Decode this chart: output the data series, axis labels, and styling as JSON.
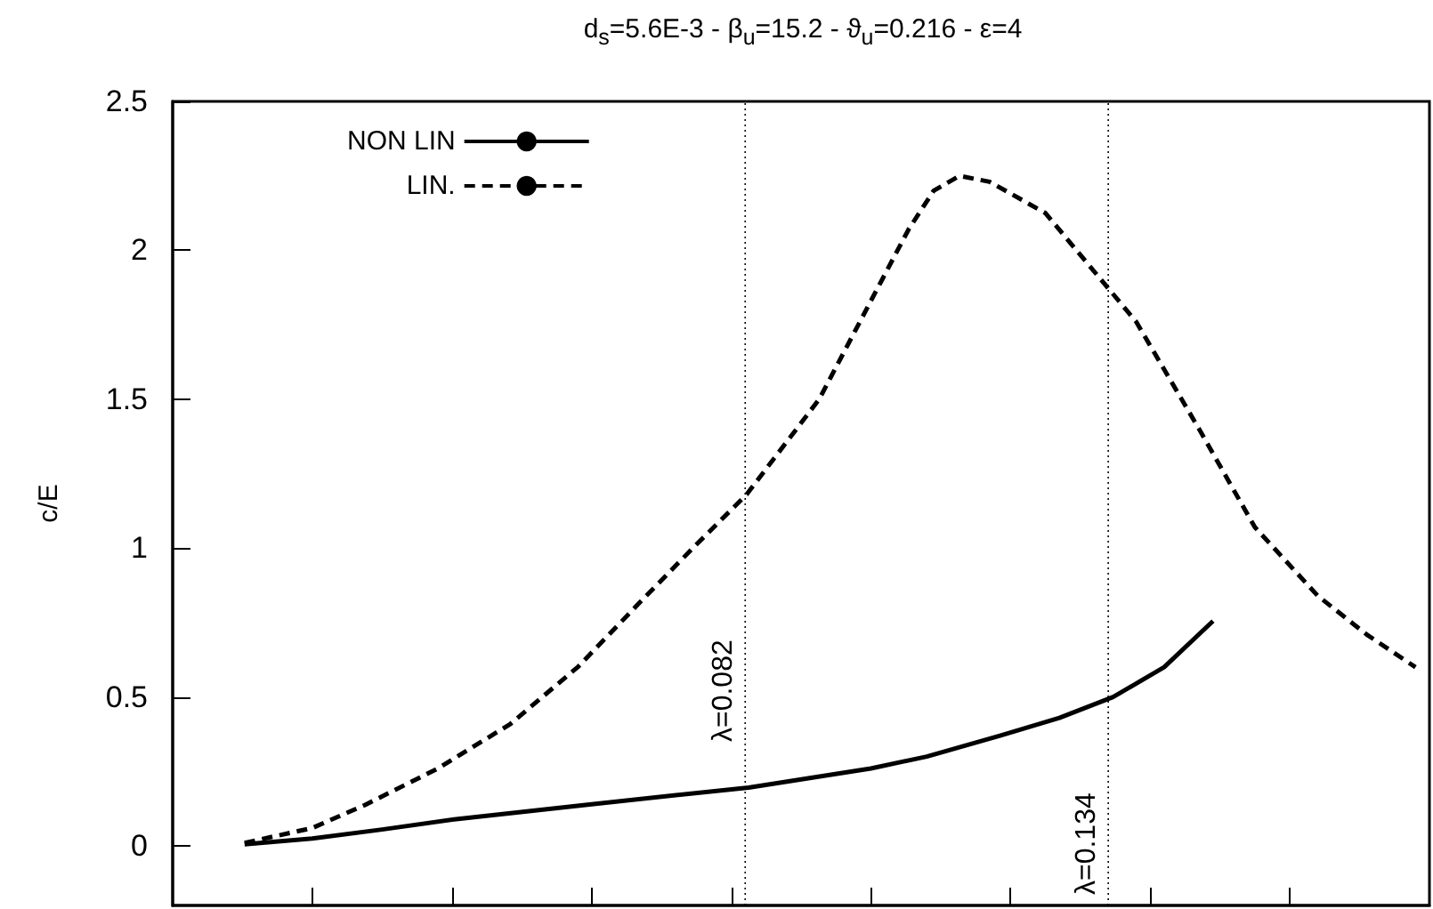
{
  "chart_data": {
    "type": "line",
    "title": "d$_{s}$=5.6E-3 - β$_{u}$=15.2 - ϑ$_{u}$=0.216 - ε=4",
    "ylabel": "c/E",
    "xlim": [
      0,
      0.18
    ],
    "xticks": [
      {
        "value": 0.02,
        "label": null
      },
      {
        "value": 0.04,
        "label": null
      },
      {
        "value": 0.06,
        "label": null
      },
      {
        "value": 0.08,
        "label": null
      },
      {
        "value": 0.1,
        "label": null
      },
      {
        "value": 0.12,
        "label": null
      },
      {
        "value": 0.14,
        "label": null
      },
      {
        "value": 0.16,
        "label": null
      }
    ],
    "ylim": [
      -0.2,
      2.5
    ],
    "yticks": [
      0,
      0.5,
      1,
      1.5,
      2,
      2.5
    ],
    "tick_labels": "y",
    "grid": false,
    "legend": "top left",
    "marker": "none",
    "series": [
      {
        "name": "NON LIN",
        "color": "#000000",
        "line_style": "solid",
        "x": [
          0.0103,
          0.02,
          0.03,
          0.0406,
          0.06,
          0.0825,
          0.1,
          0.108,
          0.1185,
          0.127,
          0.1347,
          0.142,
          0.149
        ],
        "values": [
          0.005,
          0.025,
          0.055,
          0.09,
          0.14,
          0.196,
          0.26,
          0.3,
          0.37,
          0.43,
          0.5,
          0.6,
          0.755
        ]
      },
      {
        "name": "LIN.",
        "color": "#000000",
        "line_style": "dashed",
        "x": [
          0.0103,
          0.02,
          0.0275,
          0.038,
          0.0484,
          0.058,
          0.0666,
          0.0745,
          0.0822,
          0.0926,
          0.1,
          0.1054,
          0.109,
          0.1127,
          0.117,
          0.125,
          0.138,
          0.147,
          0.155,
          0.164,
          0.171,
          0.178
        ],
        "values": [
          0.01,
          0.06,
          0.137,
          0.26,
          0.41,
          0.6,
          0.81,
          1.0,
          1.18,
          1.5,
          1.83,
          2.07,
          2.2,
          2.25,
          2.23,
          2.125,
          1.76,
          1.4,
          1.07,
          0.84,
          0.71,
          0.6
        ]
      }
    ],
    "ref_lines": [
      {
        "axis": "x",
        "value": 0.082,
        "label": "λ=0.082",
        "color": "#000000",
        "line_style": "dotted"
      },
      {
        "axis": "x",
        "value": 0.134,
        "label": "λ=0.134",
        "color": "#000000",
        "line_style": "dotted"
      }
    ]
  }
}
